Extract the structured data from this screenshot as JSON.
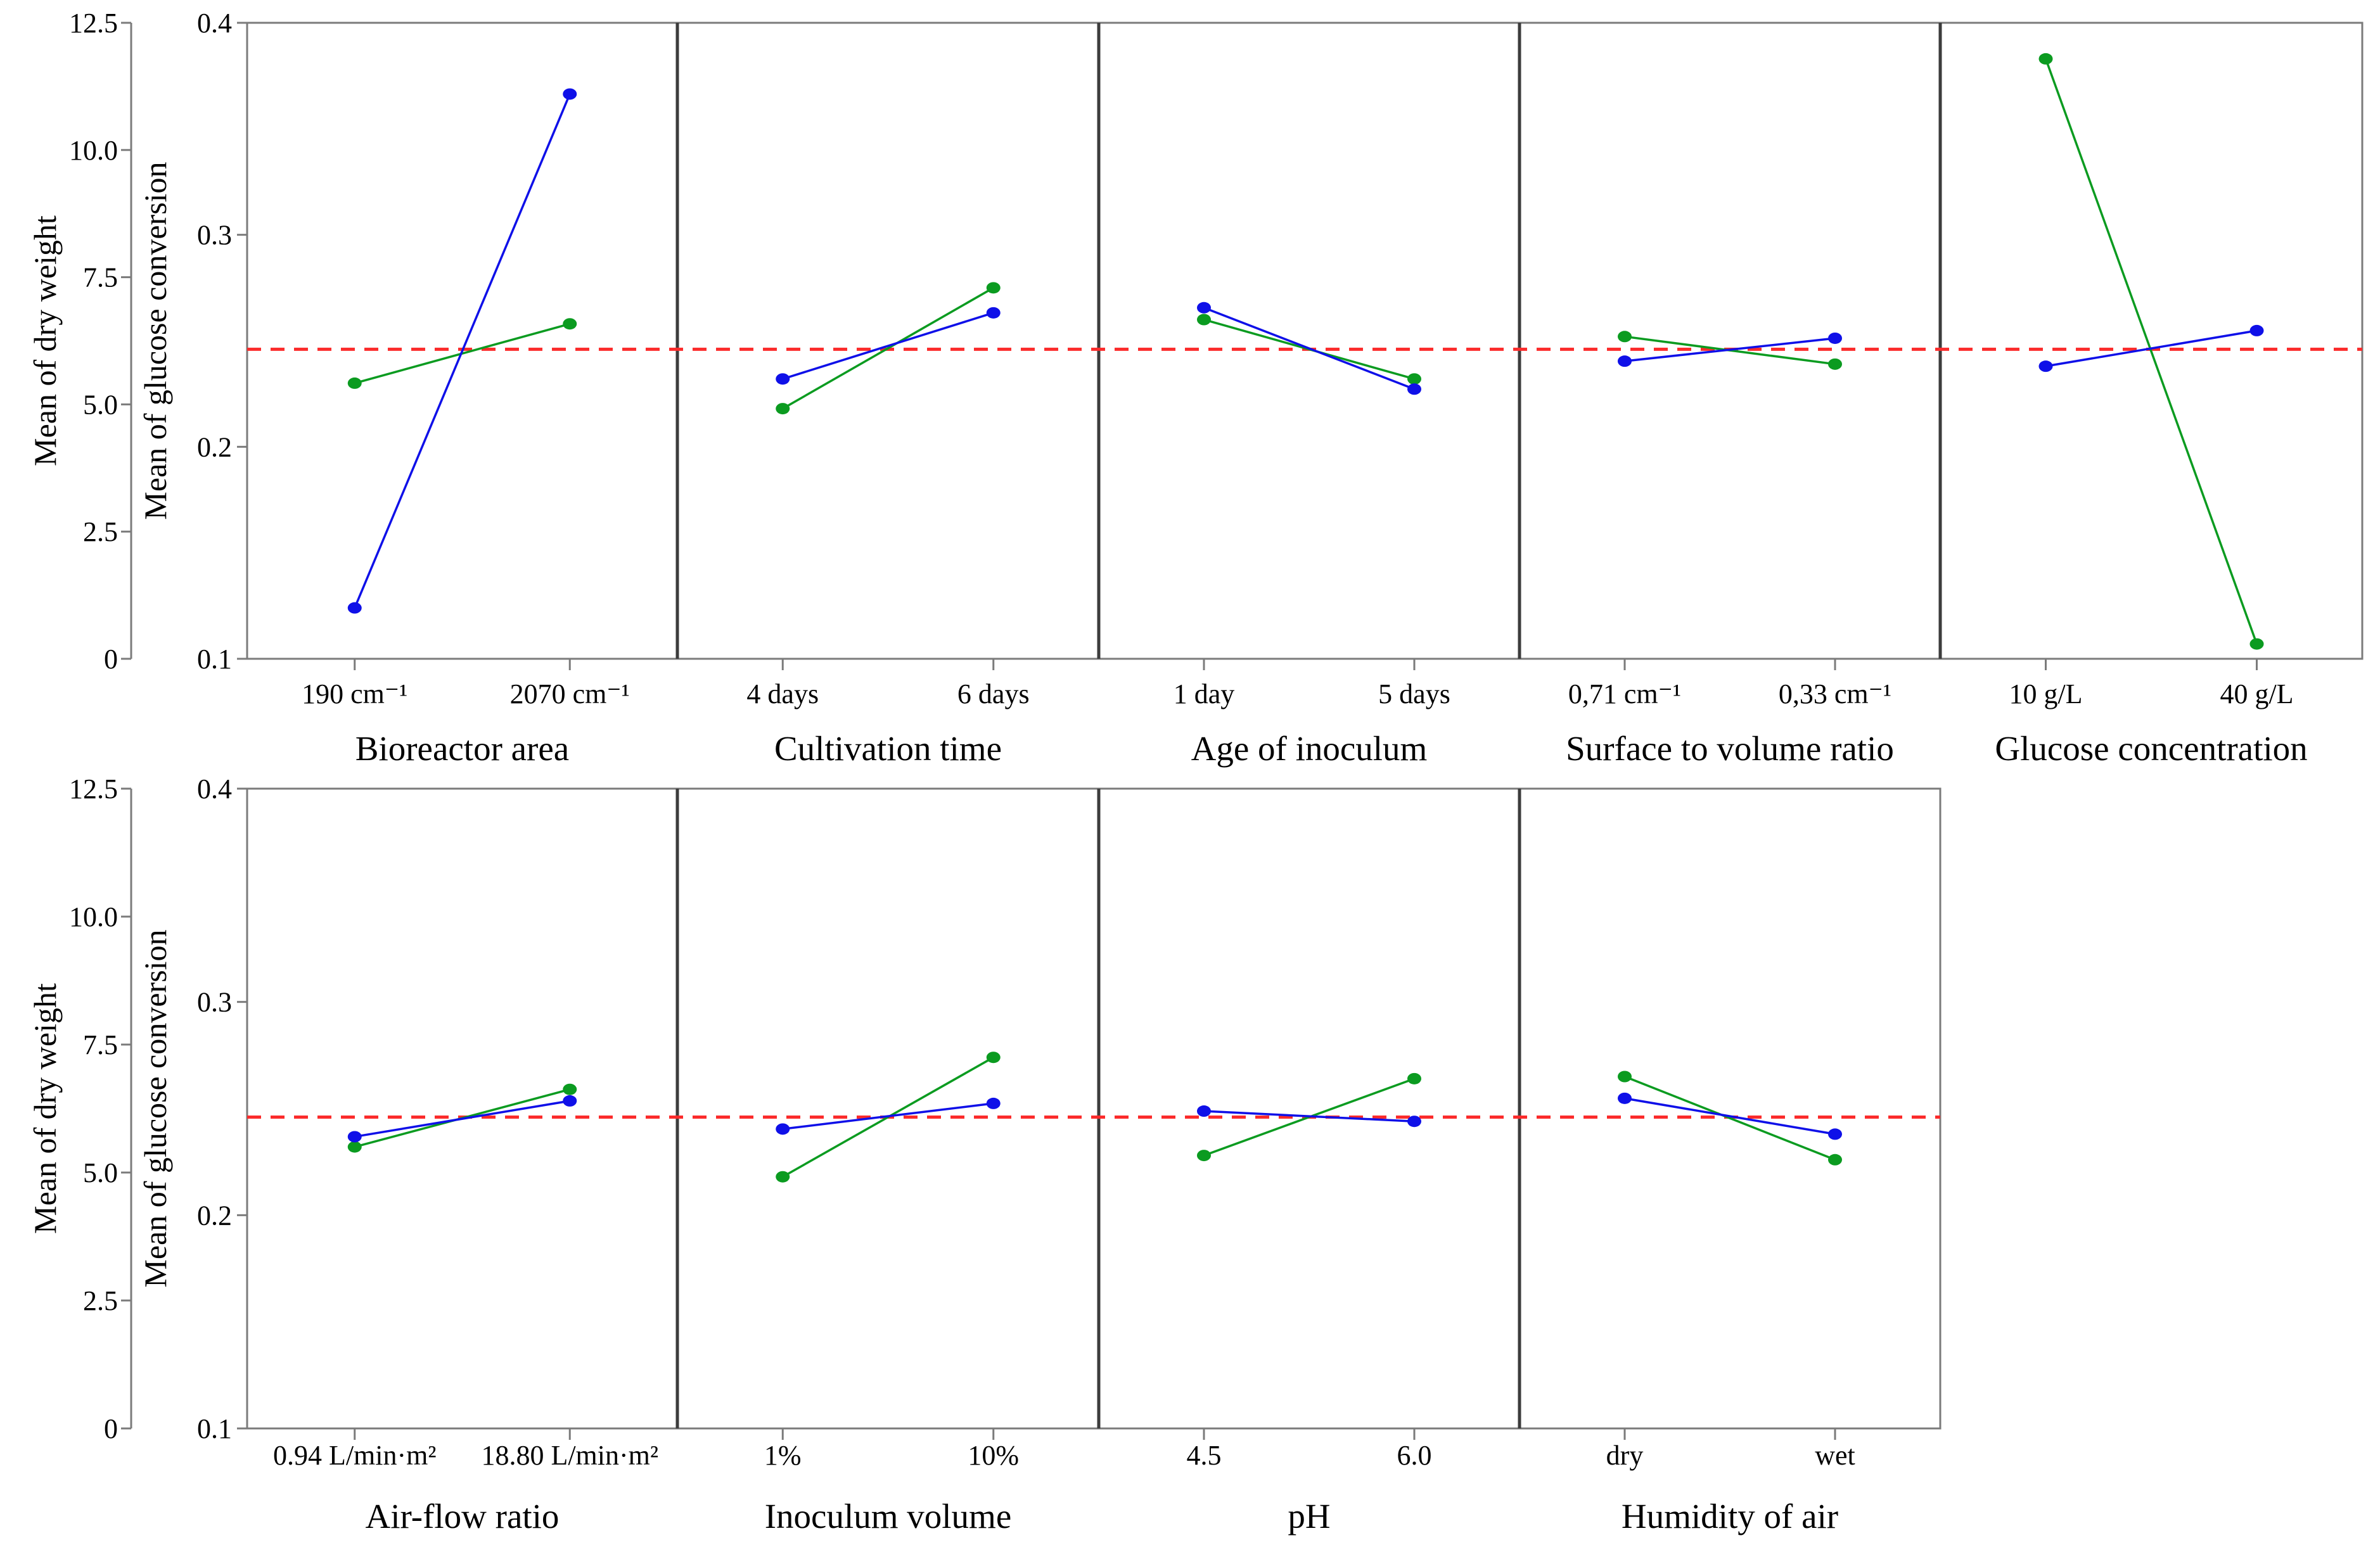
{
  "figure": {
    "kind": "main-effects-plot",
    "background": "#ffffff"
  },
  "chart_data": {
    "type": "line",
    "title": "",
    "grid": false,
    "legend": "none",
    "mean_line": {
      "glucose_value": 0.246,
      "dry_weight_value": 6.1,
      "color": "#fb2b2b",
      "style": "dashed"
    },
    "series_meta": [
      {
        "id": "dry_weight",
        "name": "Mean of dry weight",
        "color": "#0f10e8",
        "axis": "dry"
      },
      {
        "id": "glucose",
        "name": "Mean of glucose conversion",
        "color": "#0b9b20",
        "axis": "glucose"
      }
    ],
    "y_axes": [
      {
        "id": "dry",
        "title": "Mean of dry weight",
        "range": [
          0,
          12.5
        ],
        "ticks": [
          0,
          2.5,
          5.0,
          7.5,
          10.0,
          12.5
        ],
        "tick_labels": [
          "0",
          "2.5",
          "5.0",
          "7.5",
          "10.0",
          "12.5"
        ]
      },
      {
        "id": "glucose",
        "title": "Mean of glucose conversion",
        "range": [
          0.1,
          0.4
        ],
        "ticks": [
          0.1,
          0.2,
          0.3,
          0.4
        ],
        "tick_labels": [
          "0.1",
          "0.2",
          "0.3",
          "0.4"
        ]
      }
    ],
    "rows": [
      {
        "row": 0,
        "panel_ids": [
          0,
          1,
          2,
          3,
          4
        ]
      },
      {
        "row": 1,
        "panel_ids": [
          5,
          6,
          7,
          8
        ]
      }
    ],
    "panels": [
      {
        "row": 0,
        "factor": "Bioreactor area",
        "levels": [
          "190 cm⁻¹",
          "2070 cm⁻¹"
        ],
        "dry_weight": [
          1.0,
          11.1
        ],
        "glucose": [
          0.23,
          0.258
        ]
      },
      {
        "row": 0,
        "factor": "Cultivation time",
        "levels": [
          "4 days",
          "6 days"
        ],
        "dry_weight": [
          5.5,
          6.8
        ],
        "glucose": [
          0.218,
          0.275
        ]
      },
      {
        "row": 0,
        "factor": "Age of inoculum",
        "levels": [
          "1 day",
          "5 days"
        ],
        "dry_weight": [
          6.9,
          5.3
        ],
        "glucose": [
          0.26,
          0.232
        ]
      },
      {
        "row": 0,
        "factor": "Surface to volume ratio",
        "levels": [
          "0,71 cm⁻¹",
          "0,33 cm⁻¹"
        ],
        "dry_weight": [
          5.85,
          6.3
        ],
        "glucose": [
          0.252,
          0.239
        ]
      },
      {
        "row": 0,
        "factor": "Glucose concentration",
        "levels": [
          "10 g/L",
          "40 g/L"
        ],
        "dry_weight": [
          5.75,
          6.45
        ],
        "glucose": [
          0.383,
          0.107
        ]
      },
      {
        "row": 1,
        "factor": "Air-flow ratio",
        "levels": [
          "0.94 L/min·m²",
          "18.80 L/min·m²"
        ],
        "dry_weight": [
          5.7,
          6.4
        ],
        "glucose": [
          0.232,
          0.259
        ]
      },
      {
        "row": 1,
        "factor": "Inoculum volume",
        "levels": [
          "1%",
          "10%"
        ],
        "dry_weight": [
          5.85,
          6.35
        ],
        "glucose": [
          0.218,
          0.274
        ]
      },
      {
        "row": 1,
        "factor": "pH",
        "levels": [
          "4.5",
          "6.0"
        ],
        "dry_weight": [
          6.2,
          6.0
        ],
        "glucose": [
          0.228,
          0.264
        ]
      },
      {
        "row": 1,
        "factor": "Humidity of air",
        "levels": [
          "dry",
          "wet"
        ],
        "dry_weight": [
          6.45,
          5.75
        ],
        "glucose": [
          0.265,
          0.226
        ]
      }
    ],
    "style_colors": {
      "frame": "#7b7b7b",
      "separator": "#3c3c3c",
      "tick": "#7b7b7b",
      "text": "#000000"
    }
  }
}
